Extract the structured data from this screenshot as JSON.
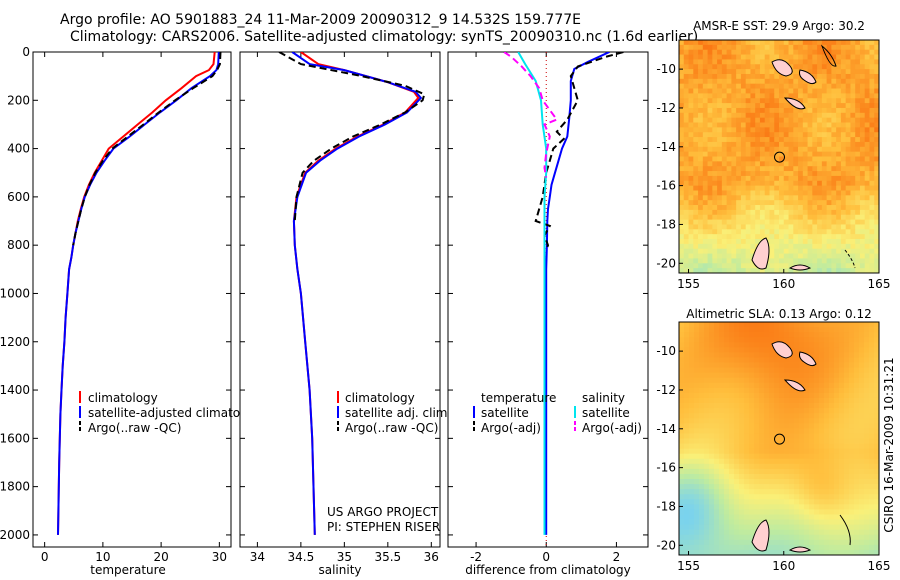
{
  "figure_title": {
    "line1": "Argo profile: AO 5901883_24 11-Mar-2009 20090312_9 14.532S 159.777E",
    "line2": "Climatology: CARS2006. Satellite-adjusted climatology: synTS_20090310.nc (1.6d earlier)"
  },
  "credit": "CSIRO 16-Mar-2009 10:31:21",
  "project": {
    "line1": "US ARGO PROJECT",
    "line2": "PI: STEPHEN RISER"
  },
  "colors": {
    "climatology": "#ff0000",
    "satellite": "#0000ff",
    "argo": "#000000",
    "sat_diff": "#00e5ee",
    "argo_diff": "#ff00ff"
  },
  "chart_data": [
    {
      "type": "line",
      "id": "temperature",
      "xlabel": "temperature",
      "ylabel": "",
      "xlim": [
        -2,
        32
      ],
      "ylim": [
        2050,
        0
      ],
      "xticks": [
        0,
        10,
        20,
        30
      ],
      "yticks": [
        0,
        200,
        400,
        600,
        800,
        1000,
        1200,
        1400,
        1600,
        1800,
        2000
      ],
      "legend": [
        "climatology",
        "satellite-adjusted climatology",
        "Argo(..raw -QC)"
      ],
      "series": [
        {
          "name": "climatology",
          "color": "#ff0000",
          "x": [
            29.2,
            29.0,
            28.2,
            26.0,
            23.5,
            20.8,
            18.5,
            16.0,
            13.5,
            11.0,
            9.8,
            8.6,
            7.6,
            6.8,
            6.2,
            5.7,
            5.3,
            4.9,
            4.6,
            4.2,
            3.9,
            3.6,
            3.4,
            3.1,
            2.9,
            2.7,
            2.6,
            2.5,
            2.3
          ],
          "y": [
            0,
            50,
            75,
            100,
            150,
            200,
            250,
            300,
            350,
            400,
            450,
            500,
            550,
            600,
            650,
            700,
            750,
            800,
            850,
            900,
            1000,
            1100,
            1200,
            1300,
            1400,
            1500,
            1600,
            1700,
            2000
          ]
        },
        {
          "name": "satellite",
          "color": "#0000ff",
          "x": [
            29.9,
            29.8,
            29.5,
            28.4,
            25.2,
            22.6,
            19.8,
            17.2,
            14.6,
            11.8,
            10.3,
            8.9,
            7.8,
            6.9,
            6.3,
            5.8,
            5.3,
            4.9,
            4.6,
            4.2,
            3.9,
            3.6,
            3.4,
            3.1,
            2.9,
            2.7,
            2.6,
            2.5,
            2.3
          ],
          "y": [
            0,
            50,
            75,
            100,
            150,
            200,
            250,
            300,
            350,
            400,
            450,
            500,
            550,
            600,
            650,
            700,
            750,
            800,
            850,
            900,
            1000,
            1100,
            1200,
            1300,
            1400,
            1500,
            1600,
            1700,
            2000
          ]
        },
        {
          "name": "argo",
          "color": "#000000",
          "dashed": true,
          "x": [
            30.2,
            30.1,
            29.6,
            28.8,
            25.5,
            22.4,
            19.6,
            17.0,
            14.3,
            11.6,
            10.0,
            8.7,
            7.7,
            6.9,
            6.3,
            5.8,
            5.3,
            4.9
          ],
          "y": [
            0,
            50,
            75,
            100,
            150,
            200,
            250,
            300,
            350,
            400,
            450,
            500,
            550,
            600,
            650,
            700,
            750,
            800
          ]
        }
      ]
    },
    {
      "type": "line",
      "id": "salinity",
      "xlabel": "salinity",
      "ylabel": "",
      "xlim": [
        33.8,
        36.1
      ],
      "ylim": [
        2050,
        0
      ],
      "xticks": [
        34,
        34.5,
        35,
        35.5,
        36
      ],
      "yticks": [
        0,
        200,
        400,
        600,
        800,
        1000,
        1200,
        1400,
        1600,
        1800,
        2000
      ],
      "legend": [
        "climatology",
        "satellite adj. clim.",
        "Argo(..raw -QC)"
      ],
      "series": [
        {
          "name": "climatology",
          "color": "#ff0000",
          "x": [
            34.5,
            34.7,
            35.0,
            35.5,
            35.8,
            35.85,
            35.7,
            35.45,
            35.15,
            34.9,
            34.7,
            34.55,
            34.45,
            34.42,
            34.43,
            34.46,
            34.5,
            34.55,
            34.6,
            34.63,
            34.66
          ],
          "y": [
            0,
            50,
            75,
            125,
            165,
            190,
            250,
            300,
            350,
            400,
            450,
            500,
            600,
            700,
            800,
            900,
            1000,
            1200,
            1400,
            1600,
            2000
          ]
        },
        {
          "name": "satellite",
          "color": "#0000ff",
          "x": [
            34.4,
            34.6,
            35.0,
            35.5,
            35.82,
            35.88,
            35.72,
            35.47,
            35.17,
            34.92,
            34.72,
            34.56,
            34.46,
            34.42,
            34.43,
            34.46,
            34.5,
            34.55,
            34.6,
            34.63,
            34.66
          ],
          "y": [
            0,
            50,
            75,
            125,
            165,
            190,
            250,
            300,
            350,
            400,
            450,
            500,
            600,
            700,
            800,
            900,
            1000,
            1200,
            1400,
            1600,
            2000
          ]
        },
        {
          "name": "argo",
          "color": "#000000",
          "dashed": true,
          "x": [
            34.25,
            34.5,
            35.2,
            35.7,
            35.92,
            35.9,
            35.7,
            35.42,
            35.1,
            34.85,
            34.65,
            34.52,
            34.45,
            34.43
          ],
          "y": [
            0,
            50,
            100,
            140,
            175,
            200,
            250,
            300,
            350,
            400,
            450,
            500,
            600,
            700
          ]
        }
      ]
    },
    {
      "type": "line",
      "id": "difference",
      "xlabel": "difference from climatology",
      "ylabel": "",
      "xlim": [
        -2.8,
        2.9
      ],
      "ylim": [
        2050,
        0
      ],
      "xticks": [
        -2,
        0,
        2
      ],
      "yticks": [
        0,
        200,
        400,
        600,
        800,
        1000,
        1200,
        1400,
        1600,
        1800,
        2000
      ],
      "legend_left": [
        "temperature",
        "satellite",
        "Argo(-adj)"
      ],
      "legend_right": [
        "salinity",
        "satellite",
        "Argo(-adj)"
      ],
      "series": [
        {
          "name": "temp-satellite",
          "color": "#0000ff",
          "x": [
            1.8,
            1.2,
            0.8,
            0.7,
            0.7,
            0.65,
            0.6,
            0.45,
            0.35,
            0.25,
            0.15,
            0.1,
            0.05,
            0.03,
            0.02,
            0.0,
            0.0,
            0.0,
            0.0,
            0.0,
            0.0
          ],
          "y": [
            0,
            40,
            70,
            120,
            200,
            280,
            350,
            400,
            450,
            500,
            550,
            600,
            650,
            700,
            800,
            900,
            1000,
            1200,
            1500,
            1800,
            2000
          ]
        },
        {
          "name": "temp-argo",
          "color": "#000000",
          "dashed": true,
          "x": [
            2.2,
            1.7,
            0.9,
            0.7,
            0.9,
            0.6,
            0.3,
            0.5,
            0.2,
            0.1,
            0.0,
            -0.1,
            -0.3,
            0.1,
            -0.05,
            0.05,
            0.0
          ],
          "y": [
            0,
            20,
            60,
            100,
            200,
            280,
            330,
            360,
            400,
            450,
            500,
            600,
            700,
            720,
            760,
            800,
            820
          ]
        },
        {
          "name": "sal-satellite",
          "color": "#00e5ee",
          "x": [
            -0.8,
            -0.6,
            -0.3,
            -0.15,
            -0.1,
            0.0,
            0.0,
            -0.05,
            -0.05,
            -0.05,
            -0.05,
            -0.05,
            -0.05,
            -0.05
          ],
          "y": [
            0,
            50,
            120,
            200,
            300,
            400,
            500,
            600,
            800,
            1000,
            1200,
            1500,
            1800,
            2000
          ]
        },
        {
          "name": "sal-argo",
          "color": "#ff00ff",
          "dashed": true,
          "x": [
            -1.2,
            -1.0,
            -0.7,
            -0.45,
            -0.2,
            -0.1,
            0.3,
            -0.05,
            0.1,
            0.0,
            -0.05,
            0.0
          ],
          "y": [
            0,
            20,
            60,
            100,
            150,
            200,
            280,
            300,
            350,
            420,
            480,
            520
          ]
        }
      ]
    },
    {
      "type": "heatmap",
      "id": "sst_map",
      "title": "AMSR-E SST: 29.9 Argo: 30.2",
      "xlim": [
        154.5,
        165
      ],
      "ylim": [
        -20.5,
        -8.5
      ],
      "xticks": [
        155,
        160,
        165
      ],
      "yticks": [
        -10,
        -12,
        -14,
        -16,
        -18,
        -20
      ],
      "argo_position": {
        "lon": 159.777,
        "lat": -14.532
      }
    },
    {
      "type": "heatmap",
      "id": "sla_map",
      "title": "Altimetric SLA: 0.13 Argo: 0.12",
      "xlim": [
        154.5,
        165
      ],
      "ylim": [
        -20.5,
        -8.5
      ],
      "xticks": [
        155,
        160,
        165
      ],
      "yticks": [
        -10,
        -12,
        -14,
        -16,
        -18,
        -20
      ],
      "argo_position": {
        "lon": 159.777,
        "lat": -14.532
      }
    }
  ]
}
